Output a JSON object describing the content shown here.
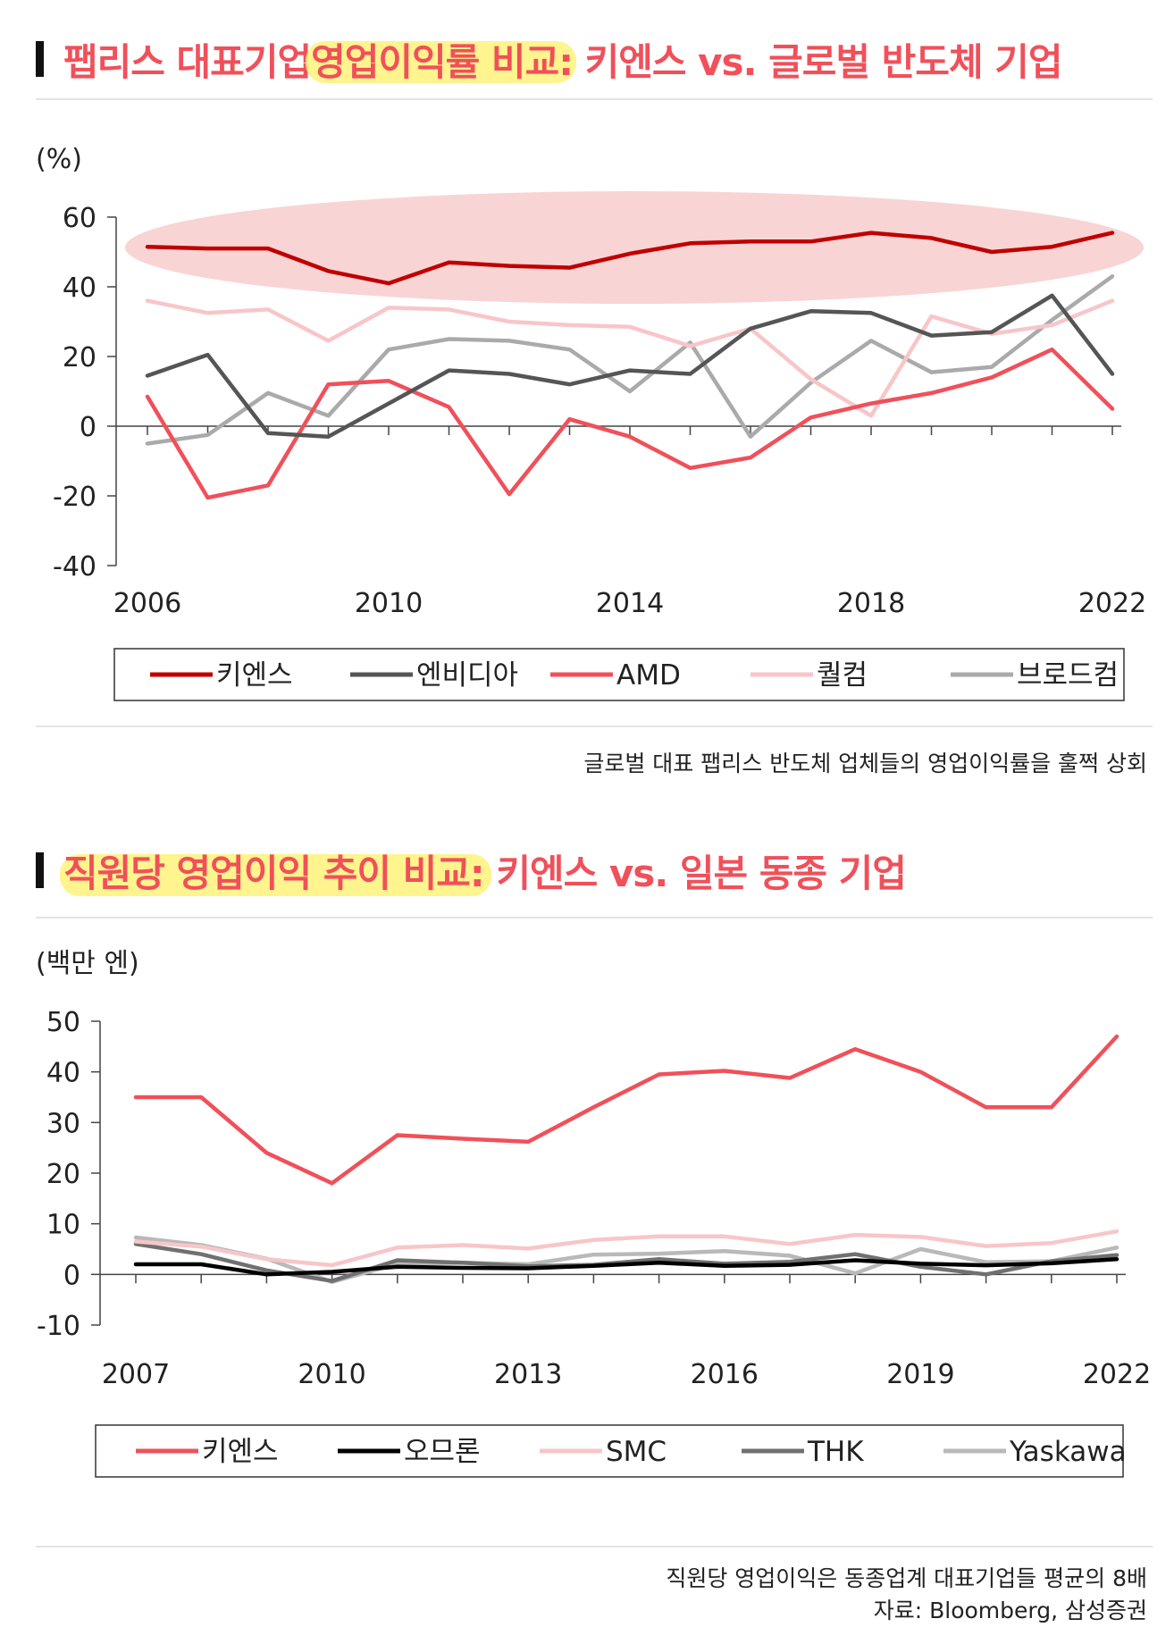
{
  "chart1": {
    "title_pre": "팹리스 대표기업 ",
    "title_hl": "영업이익률 비교:",
    "title_post": " 키엔스 vs. 글로벌 반도체 기업",
    "caption": "글로벌 대표 팹리스 반도체 업체들의 영업이익률을 훌쩍 상회"
  },
  "chart2": {
    "title_hl": "직원당 영업이익 추이 비교:",
    "title_post": " 키엔스 vs. 일본 동종 기업",
    "caption": "직원당 영업이익은 동종업계 대표기업들 평균의 8배",
    "source": "자료: Bloomberg, 삼성증권"
  },
  "chart_data": [
    {
      "type": "line",
      "title": "팹리스 대표기업 영업이익률 비교: 키엔스 vs. 글로벌 반도체 기업",
      "ylabel": "(%)",
      "ylim": [
        -40,
        60
      ],
      "yticks": [
        60,
        40,
        20,
        0,
        -20,
        -40
      ],
      "xlim": [
        2006,
        2022
      ],
      "xticks": [
        2006,
        2010,
        2014,
        2018,
        2022
      ],
      "grid": false,
      "highlight": "ellipse around 키엔스 series",
      "legend_position": "bottom",
      "x": [
        2006,
        2007,
        2008,
        2009,
        2010,
        2011,
        2012,
        2013,
        2014,
        2015,
        2016,
        2017,
        2018,
        2019,
        2020,
        2021,
        2022
      ],
      "series": [
        {
          "name": "키엔스",
          "color": "#c00000",
          "values": [
            51.5,
            51,
            51,
            44.5,
            41,
            47,
            46,
            45.5,
            49.5,
            52.5,
            53,
            53,
            55.5,
            54,
            50,
            51.5,
            55.5
          ]
        },
        {
          "name": "엔비디아",
          "color": "#555555",
          "values": [
            14.5,
            20.5,
            -2,
            -3,
            6.5,
            16,
            15,
            12,
            16,
            15,
            28,
            33,
            32.5,
            26,
            27,
            37.5,
            15
          ]
        },
        {
          "name": "AMD",
          "color": "#f0505a",
          "values": [
            8.5,
            -20.5,
            -17,
            12,
            13,
            5.5,
            -19.5,
            2,
            -3,
            -12,
            -9,
            2.5,
            6.5,
            9.5,
            14,
            22,
            5
          ]
        },
        {
          "name": "퀄컴",
          "color": "#f8c6c8",
          "values": [
            36,
            32.5,
            33.5,
            24.5,
            34,
            33.5,
            30,
            29,
            28.5,
            23,
            28,
            13.5,
            3,
            31.5,
            26.5,
            29,
            36
          ]
        },
        {
          "name": "브로드컴",
          "color": "#aaaaaa",
          "values": [
            -5,
            -2.5,
            9.5,
            3,
            22,
            25,
            24.5,
            22,
            10,
            24,
            -3,
            12.5,
            24.5,
            15.5,
            17,
            30.5,
            43
          ]
        }
      ]
    },
    {
      "type": "line",
      "title": "직원당 영업이익 추이 비교: 키엔스 vs. 일본 동종 기업",
      "ylabel": "(백만 엔)",
      "ylim": [
        -10,
        50
      ],
      "yticks": [
        50,
        40,
        30,
        20,
        10,
        0,
        -10
      ],
      "xlim": [
        2007,
        2022
      ],
      "xticks": [
        2007,
        2010,
        2013,
        2016,
        2019,
        2022
      ],
      "grid": false,
      "legend_position": "bottom",
      "x": [
        2007,
        2008,
        2009,
        2010,
        2011,
        2012,
        2013,
        2014,
        2015,
        2016,
        2017,
        2018,
        2019,
        2020,
        2021,
        2022
      ],
      "series": [
        {
          "name": "키엔스",
          "color": "#f0505a",
          "values": [
            35,
            35,
            24,
            18,
            27.5,
            26.8,
            26.2,
            33,
            39.5,
            40.2,
            38.8,
            44.5,
            40,
            33,
            33,
            47
          ]
        },
        {
          "name": "오므론",
          "color": "#000000",
          "values": [
            2,
            2,
            0,
            0.5,
            1.5,
            1.3,
            1.2,
            1.7,
            2.3,
            1.7,
            1.9,
            2.8,
            2.1,
            1.8,
            2.2,
            3
          ]
        },
        {
          "name": "SMC",
          "color": "#f8c6c8",
          "values": [
            6.5,
            5.5,
            3,
            1.8,
            5.3,
            5.8,
            5.1,
            6.8,
            7.5,
            7.5,
            6,
            7.8,
            7.4,
            5.6,
            6.2,
            8.5
          ]
        },
        {
          "name": "THK",
          "color": "#707070",
          "values": [
            6,
            4,
            0.8,
            -1.3,
            2.8,
            2.3,
            1.6,
            1.9,
            3,
            2.1,
            2.5,
            4,
            1.5,
            0,
            2.6,
            3.8
          ]
        },
        {
          "name": "Yaskawa",
          "color": "#b9b9b9",
          "values": [
            7.3,
            5.8,
            3.1,
            -1.5,
            2.1,
            2.3,
            2,
            3.9,
            4.1,
            4.6,
            3.7,
            0.2,
            5,
            2.4,
            2.6,
            5.3
          ]
        }
      ]
    }
  ]
}
